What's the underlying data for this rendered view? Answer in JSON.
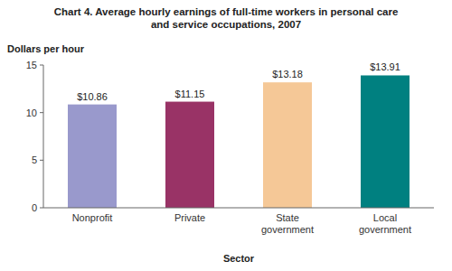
{
  "chart_data": {
    "type": "bar",
    "title": "Chart 4. Average hourly earnings of full-time workers in personal care\nand service occupations, 2007",
    "ylabel": "Dollars per hour",
    "xlabel": "Sector",
    "categories": [
      "Nonprofit",
      "Private",
      "State\ngovernment",
      "Local\ngovernment"
    ],
    "values": [
      10.86,
      11.15,
      13.18,
      13.91
    ],
    "value_labels": [
      "$10.86",
      "$11.15",
      "$13.18",
      "$13.91"
    ],
    "colors": [
      "#9999cc",
      "#993366",
      "#f5c897",
      "#008080"
    ],
    "ylim": [
      0,
      15
    ],
    "yticks": [
      0,
      5,
      10,
      15
    ],
    "data_labels": true,
    "grid": false
  }
}
